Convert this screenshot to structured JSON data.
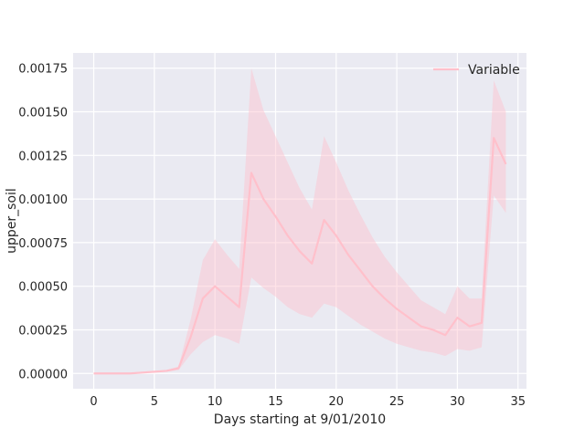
{
  "chart_data": {
    "type": "line",
    "xlabel": "Days starting at 9/01/2010",
    "ylabel": "upper_soil",
    "xlim": [
      -1.7,
      35.7
    ],
    "ylim": [
      -8.75e-05,
      0.0018375
    ],
    "xticks": [
      0,
      5,
      10,
      15,
      20,
      25,
      30,
      35
    ],
    "yticks": [
      0.0,
      0.00025,
      0.0005,
      0.00075,
      0.001,
      0.00125,
      0.0015,
      0.00175
    ],
    "ytick_labels": [
      "0.00000",
      "0.00025",
      "0.00050",
      "0.00075",
      "0.00100",
      "0.00125",
      "0.00150",
      "0.00175"
    ],
    "xtick_labels": [
      "0",
      "5",
      "10",
      "15",
      "20",
      "25",
      "30",
      "35"
    ],
    "grid": true,
    "legend_position": "top-right",
    "series": [
      {
        "name": "Variable",
        "color": "#ffc0cb",
        "x": [
          0,
          1,
          2,
          3,
          4,
          5,
          6,
          7,
          8,
          9,
          10,
          11,
          12,
          13,
          14,
          15,
          16,
          17,
          18,
          19,
          20,
          21,
          22,
          23,
          24,
          25,
          26,
          27,
          28,
          29,
          30,
          31,
          32,
          33,
          34
        ],
        "y": [
          0.0,
          0.0,
          0.0,
          0.0,
          5e-06,
          1e-05,
          1.5e-05,
          3e-05,
          0.00021,
          0.00043,
          0.0005,
          0.00044,
          0.00038,
          0.00115,
          0.001,
          0.0009,
          0.00079,
          0.0007,
          0.00063,
          0.00088,
          0.00079,
          0.00068,
          0.00059,
          0.0005,
          0.00043,
          0.00037,
          0.00032,
          0.00027,
          0.00025,
          0.00022,
          0.00032,
          0.00027,
          0.00029,
          0.00135,
          0.0012
        ],
        "ci_lower": [
          0.0,
          0.0,
          0.0,
          0.0,
          3e-06,
          7e-06,
          1e-05,
          2e-05,
          0.00011,
          0.00018,
          0.00022,
          0.0002,
          0.00017,
          0.00055,
          0.00049,
          0.00044,
          0.00038,
          0.00034,
          0.00032,
          0.0004,
          0.00038,
          0.00033,
          0.00028,
          0.00024,
          0.0002,
          0.00017,
          0.00015,
          0.00013,
          0.00012,
          0.0001,
          0.00014,
          0.00013,
          0.00015,
          0.00102,
          0.00092
        ],
        "ci_upper": [
          0.0,
          0.0,
          0.0,
          0.0,
          8e-06,
          1.4e-05,
          2e-05,
          4e-05,
          0.00031,
          0.00065,
          0.00077,
          0.00068,
          0.0006,
          0.00175,
          0.00151,
          0.00136,
          0.00121,
          0.00106,
          0.00094,
          0.00136,
          0.00121,
          0.00105,
          0.00091,
          0.00078,
          0.00067,
          0.00058,
          0.0005,
          0.00042,
          0.00038,
          0.00034,
          0.0005,
          0.00043,
          0.00043,
          0.00168,
          0.0015
        ]
      }
    ]
  }
}
